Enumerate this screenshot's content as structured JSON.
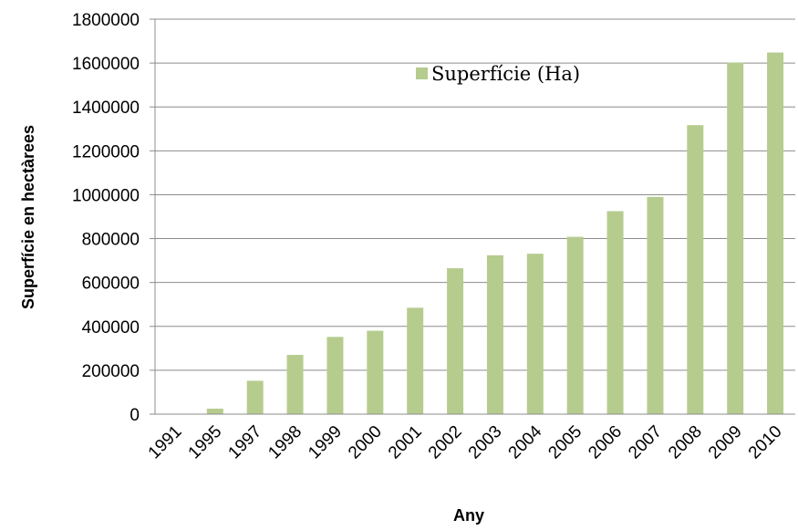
{
  "chart_data": {
    "type": "bar",
    "categories": [
      "1991",
      "1995",
      "1997",
      "1998",
      "1999",
      "2000",
      "2001",
      "2002",
      "2003",
      "2004",
      "2005",
      "2006",
      "2007",
      "2008",
      "2009",
      "2010"
    ],
    "series": [
      {
        "name": "Superfície (Ha)",
        "color": "#b5cc8e",
        "values": [
          0,
          25000,
          152000,
          270000,
          352000,
          380000,
          485000,
          665000,
          724000,
          731000,
          808000,
          925000,
          990000,
          1317000,
          1602000,
          1648000
        ]
      }
    ],
    "ylim": [
      0,
      1800000
    ],
    "yticks": [
      0,
      200000,
      400000,
      600000,
      800000,
      1000000,
      1200000,
      1400000,
      1600000,
      1800000
    ],
    "ytick_labels": [
      "0",
      "200000",
      "400000",
      "600000",
      "800000",
      "1000000",
      "1200000",
      "1400000",
      "1600000",
      "1800000"
    ],
    "xlabel": "Any",
    "ylabel": "Superfície en hectàrees",
    "grid": "horizontal",
    "legend_position": "top-center"
  }
}
